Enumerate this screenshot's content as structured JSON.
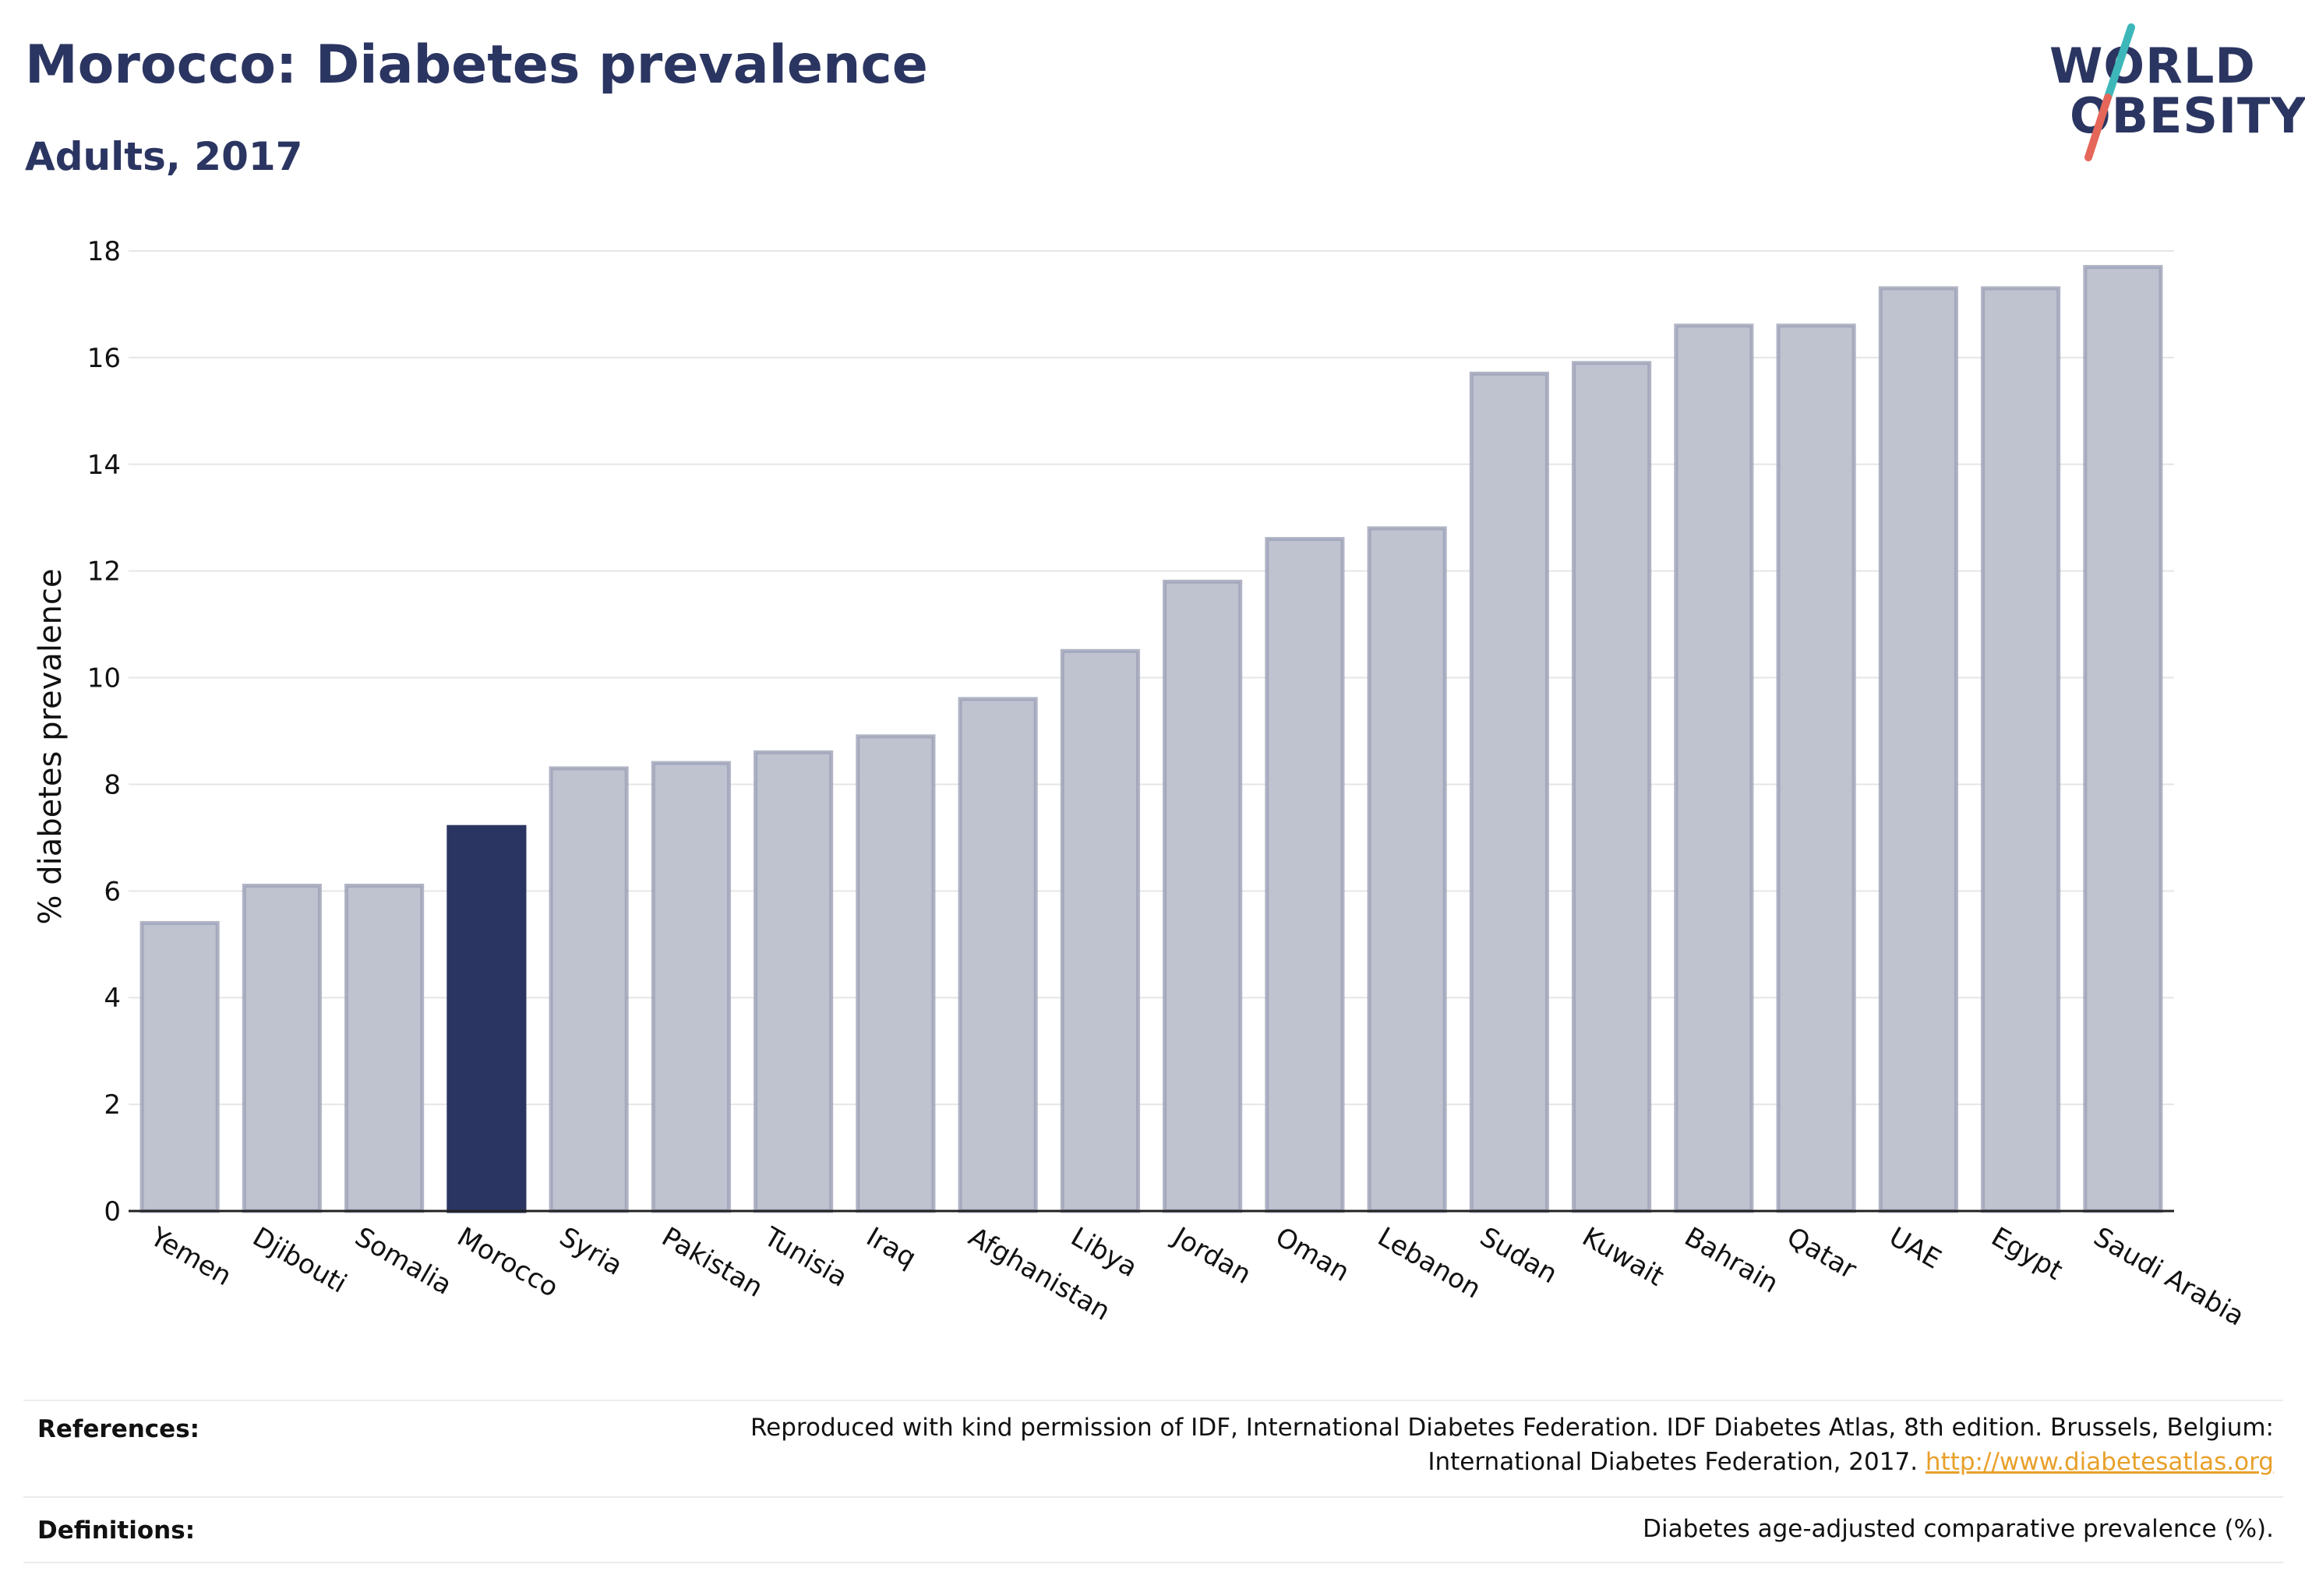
{
  "header": {
    "title": "Morocco: Diabetes prevalence",
    "subtitle": "Adults, 2017"
  },
  "logo": {
    "line1": "WORLD",
    "line2": "OBESITY",
    "accent_teal": "#3db7b9",
    "accent_red": "#e5675a"
  },
  "chart_data": {
    "type": "bar",
    "title": "Morocco: Diabetes prevalence",
    "subtitle": "Adults, 2017",
    "xlabel": "",
    "ylabel": "% diabetes prevalence",
    "ylim": [
      0,
      18
    ],
    "yticks": [
      0,
      2,
      4,
      6,
      8,
      10,
      12,
      14,
      16,
      18
    ],
    "grid": true,
    "highlight": "Morocco",
    "colors": {
      "default": "#bfc2cf",
      "default_edge": "#9da1b7",
      "highlight": "#2b3561"
    },
    "categories": [
      "Yemen",
      "Djibouti",
      "Somalia",
      "Morocco",
      "Syria",
      "Pakistan",
      "Tunisia",
      "Iraq",
      "Afghanistan",
      "Libya",
      "Jordan",
      "Oman",
      "Lebanon",
      "Sudan",
      "Kuwait",
      "Bahrain",
      "Qatar",
      "UAE",
      "Egypt",
      "Saudi Arabia"
    ],
    "values": [
      5.4,
      6.1,
      6.1,
      7.2,
      8.3,
      8.4,
      8.6,
      8.9,
      9.6,
      10.5,
      11.8,
      12.6,
      12.8,
      15.7,
      15.9,
      16.6,
      16.6,
      17.3,
      17.3,
      17.7
    ]
  },
  "footer": {
    "references_label": "References:",
    "references_text_1": "Reproduced with kind permission of IDF, International Diabetes Federation. IDF Diabetes Atlas, 8th edition. Brussels, Belgium:",
    "references_text_2": "International Diabetes Federation, 2017.",
    "references_link": "http://www.diabetesatlas.org",
    "definitions_label": "Definitions:",
    "definitions_text": "Diabetes age-adjusted comparative prevalence (%)."
  }
}
